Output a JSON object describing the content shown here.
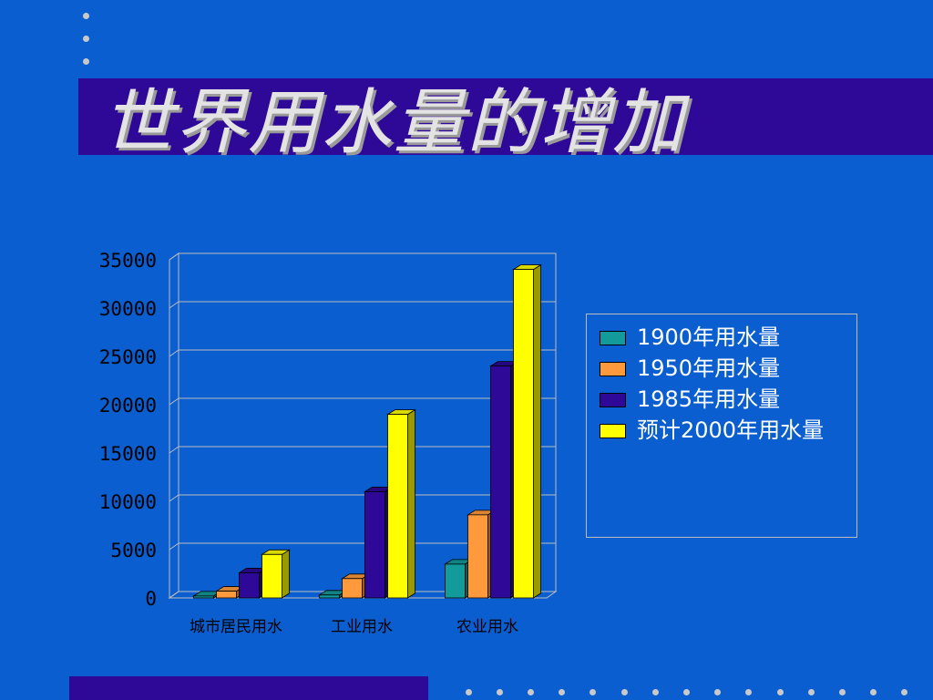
{
  "slide": {
    "title": "世界用水量的增加",
    "colors": {
      "background": "#0a5ed0",
      "band": "#2e0897",
      "dots": "#c9c9c9",
      "title_text": "#e3e3e3"
    }
  },
  "chart_data": {
    "type": "bar",
    "style": "3d-clustered-columns",
    "categories": [
      "城市居民用水",
      "工业用水",
      "农业用水"
    ],
    "series": [
      {
        "name": "1900年用水量",
        "color": "#139a9a",
        "values": [
          200,
          300,
          3500
        ]
      },
      {
        "name": "1950年用水量",
        "color": "#ff9a3c",
        "values": [
          700,
          2000,
          8600
        ]
      },
      {
        "name": "1985年用水量",
        "color": "#2e0897",
        "values": [
          2600,
          11000,
          24000
        ]
      },
      {
        "name": "预计2000年用水量",
        "color": "#ffff00",
        "values": [
          4500,
          19000,
          34000
        ]
      }
    ],
    "ylim": [
      0,
      35000
    ],
    "yticks": [
      "0",
      "5000",
      "10000",
      "15000",
      "20000",
      "25000",
      "30000",
      "35000"
    ],
    "grid": true,
    "legend_position": "right"
  }
}
